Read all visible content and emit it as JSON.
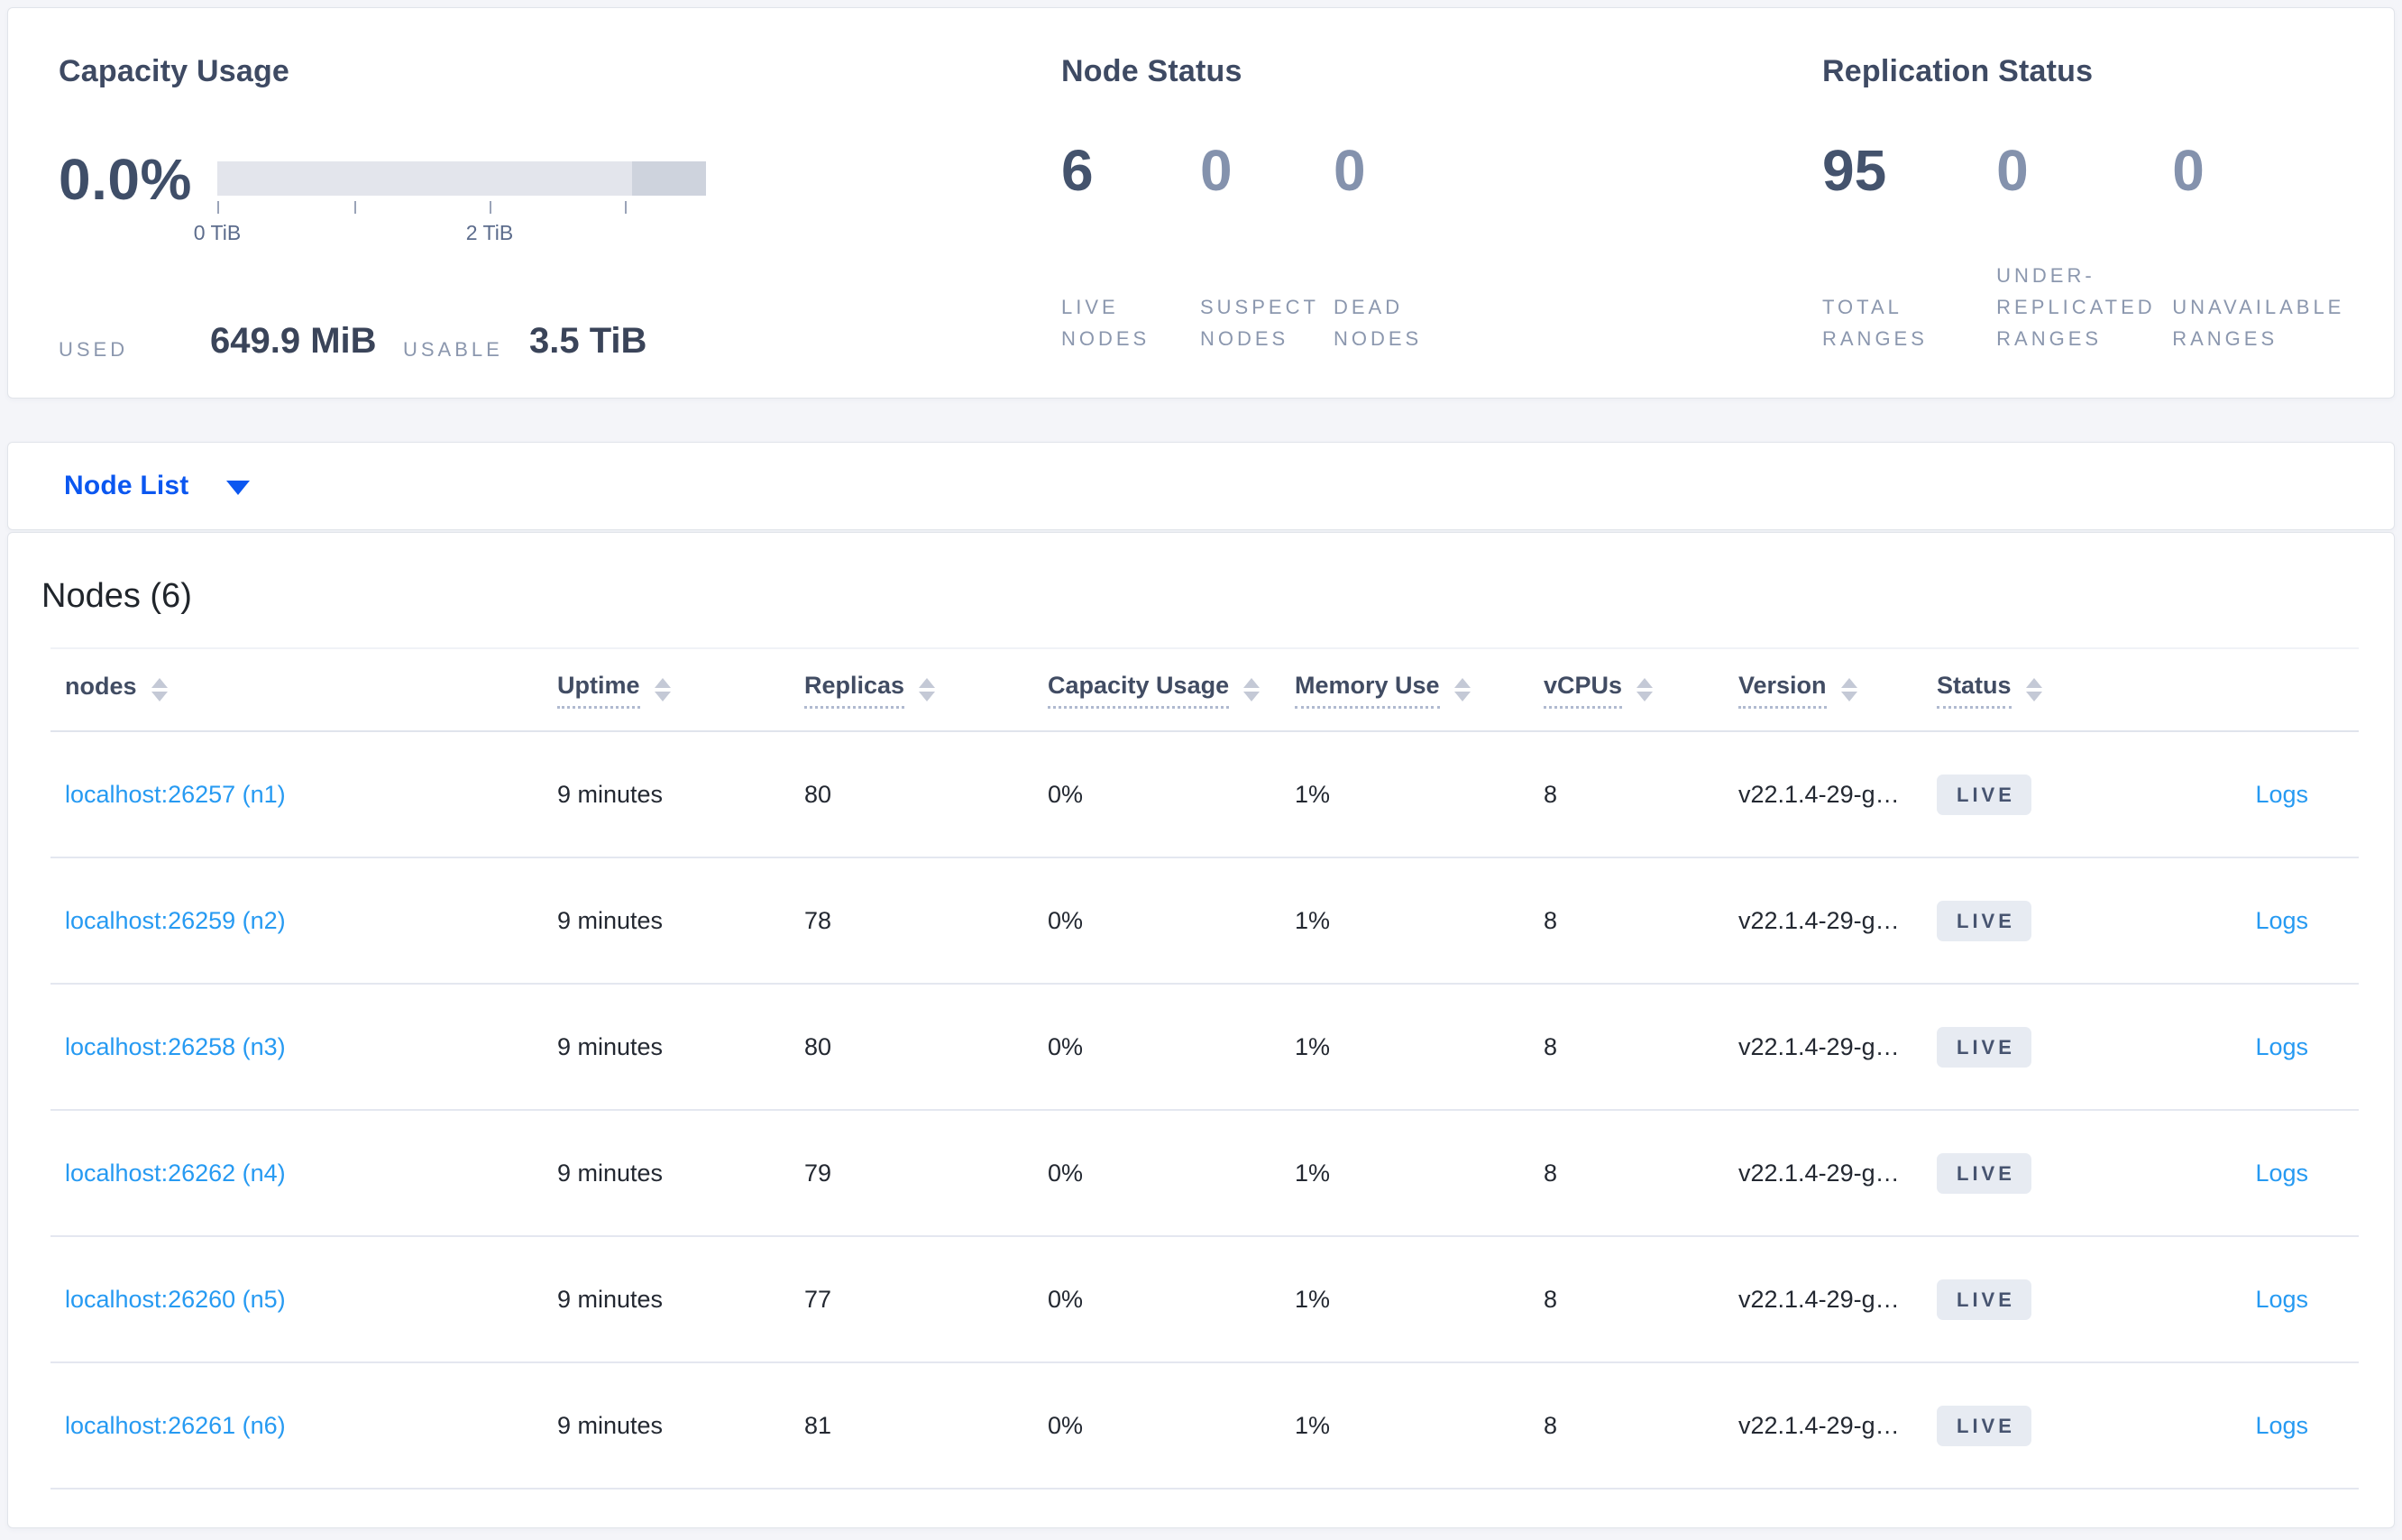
{
  "overview": {
    "capacity": {
      "title": "Capacity Usage",
      "percent": "0.0%",
      "bar": {
        "segments": [
          {
            "name": "usable",
            "color": "#e3e5ec"
          },
          {
            "name": "other",
            "color": "#ced3dd"
          }
        ],
        "tick_labels": [
          "0 TiB",
          "2 TiB"
        ]
      },
      "used_label": "USED",
      "used_value": "649.9 MiB",
      "usable_label": "USABLE",
      "usable_value": "3.5 TiB"
    },
    "node_status": {
      "title": "Node Status",
      "stats": [
        {
          "value": "6",
          "label_lines": [
            "LIVE",
            "NODES"
          ],
          "primary": true
        },
        {
          "value": "0",
          "label_lines": [
            "SUSPECT",
            "NODES"
          ],
          "primary": false
        },
        {
          "value": "0",
          "label_lines": [
            "DEAD",
            "NODES"
          ],
          "primary": false
        }
      ]
    },
    "replication_status": {
      "title": "Replication Status",
      "stats": [
        {
          "value": "95",
          "label_lines": [
            "TOTAL",
            "RANGES"
          ],
          "primary": true
        },
        {
          "value": "0",
          "label_lines": [
            "UNDER-",
            "REPLICATED",
            "RANGES"
          ],
          "primary": false
        },
        {
          "value": "0",
          "label_lines": [
            "UNAVAILABLE",
            "RANGES"
          ],
          "primary": false
        }
      ]
    }
  },
  "view_selector": {
    "label": "Node List"
  },
  "table": {
    "title": "Nodes (6)",
    "columns": [
      {
        "label": "nodes",
        "underline": false
      },
      {
        "label": "Uptime",
        "underline": true
      },
      {
        "label": "Replicas",
        "underline": true
      },
      {
        "label": "Capacity Usage",
        "underline": true
      },
      {
        "label": "Memory Use",
        "underline": true
      },
      {
        "label": "vCPUs",
        "underline": true
      },
      {
        "label": "Version",
        "underline": true
      },
      {
        "label": "Status",
        "underline": true
      },
      {
        "label": "",
        "underline": false
      }
    ],
    "rows": [
      {
        "node": "localhost:26257 (n1)",
        "uptime": "9 minutes",
        "replicas": "80",
        "capacity": "0%",
        "memory": "1%",
        "vcpus": "8",
        "version": "v22.1.4-29-g…",
        "status": "LIVE",
        "logs": "Logs"
      },
      {
        "node": "localhost:26259 (n2)",
        "uptime": "9 minutes",
        "replicas": "78",
        "capacity": "0%",
        "memory": "1%",
        "vcpus": "8",
        "version": "v22.1.4-29-g…",
        "status": "LIVE",
        "logs": "Logs"
      },
      {
        "node": "localhost:26258 (n3)",
        "uptime": "9 minutes",
        "replicas": "80",
        "capacity": "0%",
        "memory": "1%",
        "vcpus": "8",
        "version": "v22.1.4-29-g…",
        "status": "LIVE",
        "logs": "Logs"
      },
      {
        "node": "localhost:26262 (n4)",
        "uptime": "9 minutes",
        "replicas": "79",
        "capacity": "0%",
        "memory": "1%",
        "vcpus": "8",
        "version": "v22.1.4-29-g…",
        "status": "LIVE",
        "logs": "Logs"
      },
      {
        "node": "localhost:26260 (n5)",
        "uptime": "9 minutes",
        "replicas": "77",
        "capacity": "0%",
        "memory": "1%",
        "vcpus": "8",
        "version": "v22.1.4-29-g…",
        "status": "LIVE",
        "logs": "Logs"
      },
      {
        "node": "localhost:26261 (n6)",
        "uptime": "9 minutes",
        "replicas": "81",
        "capacity": "0%",
        "memory": "1%",
        "vcpus": "8",
        "version": "v22.1.4-29-g…",
        "status": "LIVE",
        "logs": "Logs"
      }
    ]
  },
  "colors": {
    "accent_blue": "#0b57f0",
    "link_blue": "#269af2",
    "badge_bg": "#e7ebf2",
    "badge_text": "#475470",
    "bar_light": "#e3e5ec",
    "bar_dark": "#ced3dd",
    "page_bg": "#f4f5f9"
  }
}
